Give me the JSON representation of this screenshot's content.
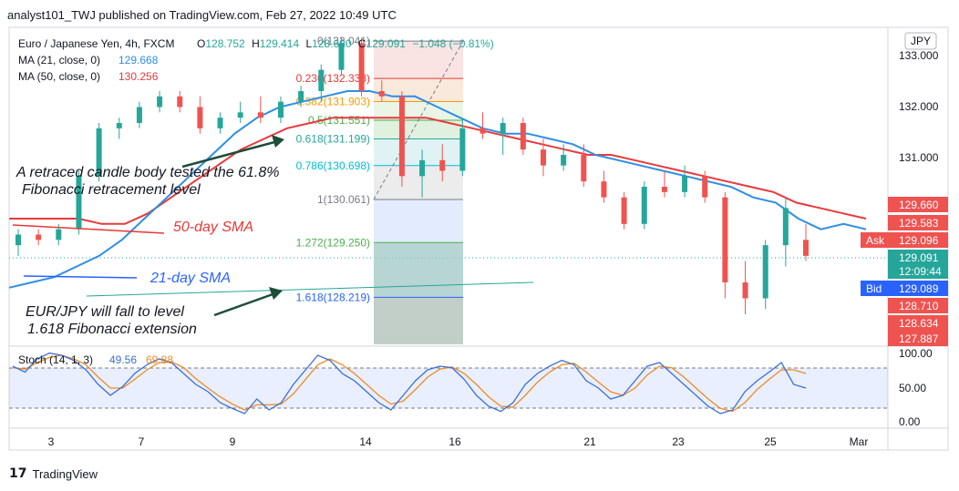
{
  "publisher": "analyst101_TWJ published on TradingView.com, Feb 27, 2022 10:49 UTC",
  "legend": {
    "symbol": "Euro / Japanese Yen, 4h, FXCM",
    "ohlc": [
      {
        "label": "O",
        "value": "128.752"
      },
      {
        "label": "H",
        "value": "129.414"
      },
      {
        "label": "L",
        "value": "128.680"
      },
      {
        "label": "C",
        "value": "129.091"
      }
    ],
    "change": "−1.048 (−0.81%)",
    "ma21_label": "MA (21, close, 0)",
    "ma21_value": "129.668",
    "ma50_label": "MA (50, close, 0)",
    "ma50_value": "130.256",
    "stoch_label": "Stoch (14, 1, 3)",
    "stoch_k": "49.56",
    "stoch_d": "69.88"
  },
  "currency": "JPY",
  "price_axis": [
    "133.000",
    "132.000",
    "131.000"
  ],
  "price_tags": [
    {
      "text": "129.660",
      "kind": "red"
    },
    {
      "text": "129.583",
      "kind": "red"
    },
    {
      "text": "129.096",
      "kind": "ask"
    },
    {
      "text": "129.091",
      "kind": "teal"
    },
    {
      "text": "12:09:44",
      "kind": "teal"
    },
    {
      "text": "129.089",
      "kind": "bid"
    },
    {
      "text": "128.710",
      "kind": "red"
    },
    {
      "text": "128.634",
      "kind": "red"
    },
    {
      "text": "127.887",
      "kind": "red"
    }
  ],
  "ask_label": "Ask",
  "bid_label": "Bid",
  "stoch_axis": [
    "100.00",
    "50.00",
    "0.00"
  ],
  "time_axis": [
    "3",
    "7",
    "9",
    "14",
    "16",
    "21",
    "23",
    "25",
    "Mar"
  ],
  "fib_levels": [
    {
      "ratio": "0",
      "price": 133.041,
      "label": "0(133.041)"
    },
    {
      "ratio": "0.236",
      "price": 132.338,
      "label": "0.236(132.338)"
    },
    {
      "ratio": "0.382",
      "price": 131.903,
      "label": "0.382(131.903)"
    },
    {
      "ratio": "0.5",
      "price": 131.551,
      "label": "0.5(131.551)"
    },
    {
      "ratio": "0.618",
      "price": 131.199,
      "label": "0.618(131.199)"
    },
    {
      "ratio": "0.786",
      "price": 130.698,
      "label": "0.786(130.698)"
    },
    {
      "ratio": "1",
      "price": 130.061,
      "label": "1(130.061)"
    },
    {
      "ratio": "1.272",
      "price": 129.25,
      "label": "1.272(129.250)"
    },
    {
      "ratio": "1.618",
      "price": 128.219,
      "label": "1.618(128.219)"
    }
  ],
  "annotations": {
    "retrace_line1": "A retraced candle body tested the 61.8%",
    "retrace_line2": "Fibonacci retracement level",
    "sma50": "50-day SMA",
    "sma21": "21-day SMA",
    "fall_line1": "EUR/JPY will fall to level",
    "fall_line2": "1.618 Fibonacci extension"
  },
  "brand": "TradingView",
  "colors": {
    "up": "#26a69a",
    "down": "#ef5350",
    "ma21": "#2e8ee6",
    "ma50": "#e8393c",
    "stoch_k": "#3b6fd6",
    "stoch_d": "#f08a24",
    "annotation_blue": "#2962ff",
    "annotation_red": "#e53935"
  },
  "chart_data": {
    "type": "candlestick",
    "symbol": "EUR/JPY",
    "timeframe": "4h",
    "price_range": [
      127.3,
      133.3
    ],
    "ma21": [
      128.4,
      128.5,
      128.6,
      128.8,
      129.0,
      129.3,
      129.7,
      130.1,
      130.5,
      130.9,
      131.3,
      131.6,
      131.8,
      131.9,
      132.0,
      132.1,
      132.1,
      132.0,
      132.0,
      131.8,
      131.6,
      131.4,
      131.3,
      131.3,
      131.2,
      131.1,
      130.9,
      130.8,
      130.7,
      130.6,
      130.5,
      130.4,
      130.3,
      130.1,
      130.0,
      129.7,
      129.5,
      129.6,
      129.5
    ],
    "ma50": [
      129.7,
      129.7,
      129.7,
      129.7,
      129.6,
      129.6,
      129.8,
      130.1,
      130.4,
      130.7,
      131.0,
      131.2,
      131.4,
      131.5,
      131.6,
      131.6,
      131.6,
      131.6,
      131.6,
      131.5,
      131.4,
      131.3,
      131.2,
      131.1,
      131.0,
      130.9,
      130.9,
      130.8,
      130.7,
      130.6,
      130.5,
      130.4,
      130.3,
      130.2,
      130.0,
      129.9,
      129.8,
      129.7
    ],
    "candles": [
      {
        "o": 129.2,
        "h": 129.5,
        "l": 129.0,
        "c": 129.4
      },
      {
        "o": 129.4,
        "h": 129.5,
        "l": 129.2,
        "c": 129.3
      },
      {
        "o": 129.3,
        "h": 129.6,
        "l": 129.2,
        "c": 129.5
      },
      {
        "o": 129.5,
        "h": 130.6,
        "l": 129.4,
        "c": 130.5
      },
      {
        "o": 130.5,
        "h": 131.5,
        "l": 130.4,
        "c": 131.4
      },
      {
        "o": 131.4,
        "h": 131.6,
        "l": 131.2,
        "c": 131.5
      },
      {
        "o": 131.5,
        "h": 131.9,
        "l": 131.4,
        "c": 131.8
      },
      {
        "o": 131.8,
        "h": 132.1,
        "l": 131.7,
        "c": 132.0
      },
      {
        "o": 132.0,
        "h": 132.1,
        "l": 131.7,
        "c": 131.8
      },
      {
        "o": 131.8,
        "h": 132.0,
        "l": 131.3,
        "c": 131.4
      },
      {
        "o": 131.4,
        "h": 131.7,
        "l": 131.3,
        "c": 131.6
      },
      {
        "o": 131.6,
        "h": 131.9,
        "l": 131.5,
        "c": 131.7
      },
      {
        "o": 131.7,
        "h": 132.0,
        "l": 131.5,
        "c": 131.6
      },
      {
        "o": 131.6,
        "h": 132.0,
        "l": 131.5,
        "c": 131.9
      },
      {
        "o": 131.9,
        "h": 132.2,
        "l": 131.8,
        "c": 132.1
      },
      {
        "o": 132.1,
        "h": 132.6,
        "l": 131.9,
        "c": 132.5
      },
      {
        "o": 132.5,
        "h": 133.1,
        "l": 132.4,
        "c": 133.0
      },
      {
        "o": 133.0,
        "h": 133.1,
        "l": 132.0,
        "c": 132.1
      },
      {
        "o": 132.1,
        "h": 132.3,
        "l": 131.9,
        "c": 132.0
      },
      {
        "o": 132.0,
        "h": 132.1,
        "l": 130.3,
        "c": 130.5
      },
      {
        "o": 130.5,
        "h": 131.0,
        "l": 130.1,
        "c": 130.8
      },
      {
        "o": 130.8,
        "h": 131.1,
        "l": 130.4,
        "c": 130.6
      },
      {
        "o": 130.6,
        "h": 131.6,
        "l": 130.5,
        "c": 131.4
      },
      {
        "o": 131.4,
        "h": 131.7,
        "l": 131.2,
        "c": 131.3
      },
      {
        "o": 131.3,
        "h": 131.6,
        "l": 130.9,
        "c": 131.5
      },
      {
        "o": 131.5,
        "h": 131.6,
        "l": 130.9,
        "c": 131.0
      },
      {
        "o": 131.0,
        "h": 131.2,
        "l": 130.5,
        "c": 130.7
      },
      {
        "o": 130.7,
        "h": 131.1,
        "l": 130.6,
        "c": 130.9
      },
      {
        "o": 130.9,
        "h": 131.1,
        "l": 130.3,
        "c": 130.4
      },
      {
        "o": 130.4,
        "h": 130.6,
        "l": 130.0,
        "c": 130.1
      },
      {
        "o": 130.1,
        "h": 130.2,
        "l": 129.5,
        "c": 129.6
      },
      {
        "o": 129.6,
        "h": 130.4,
        "l": 129.5,
        "c": 130.3
      },
      {
        "o": 130.3,
        "h": 130.6,
        "l": 130.1,
        "c": 130.2
      },
      {
        "o": 130.2,
        "h": 130.7,
        "l": 130.1,
        "c": 130.5
      },
      {
        "o": 130.5,
        "h": 130.6,
        "l": 130.0,
        "c": 130.1
      },
      {
        "o": 130.1,
        "h": 130.2,
        "l": 128.2,
        "c": 128.5
      },
      {
        "o": 128.5,
        "h": 128.9,
        "l": 127.9,
        "c": 128.2
      },
      {
        "o": 128.2,
        "h": 129.3,
        "l": 128.0,
        "c": 129.2
      },
      {
        "o": 129.2,
        "h": 130.1,
        "l": 128.8,
        "c": 129.9
      },
      {
        "o": 129.3,
        "h": 129.6,
        "l": 128.9,
        "c": 129.0
      }
    ],
    "stochastic": {
      "k": [
        80,
        72,
        90,
        98,
        95,
        88,
        75,
        55,
        40,
        52,
        70,
        82,
        90,
        85,
        70,
        55,
        45,
        30,
        22,
        15,
        35,
        20,
        30,
        55,
        75,
        95,
        88,
        70,
        60,
        45,
        30,
        20,
        40,
        60,
        75,
        80,
        78,
        62,
        40,
        25,
        18,
        30,
        55,
        70,
        80,
        88,
        82,
        60,
        50,
        35,
        40,
        60,
        80,
        85,
        70,
        55,
        40,
        25,
        15,
        20,
        45,
        60,
        72,
        85,
        55,
        50
      ],
      "d": [
        78,
        76,
        85,
        92,
        95,
        90,
        82,
        65,
        50,
        50,
        62,
        75,
        85,
        86,
        78,
        63,
        50,
        38,
        28,
        20,
        27,
        27,
        28,
        42,
        62,
        82,
        90,
        82,
        70,
        55,
        40,
        28,
        32,
        48,
        65,
        76,
        79,
        70,
        55,
        38,
        25,
        24,
        40,
        58,
        72,
        82,
        84,
        72,
        58,
        45,
        40,
        50,
        68,
        80,
        78,
        65,
        50,
        35,
        22,
        18,
        30,
        48,
        62,
        75,
        75,
        70
      ],
      "levels": [
        80,
        20
      ],
      "range": [
        0,
        100
      ]
    }
  }
}
